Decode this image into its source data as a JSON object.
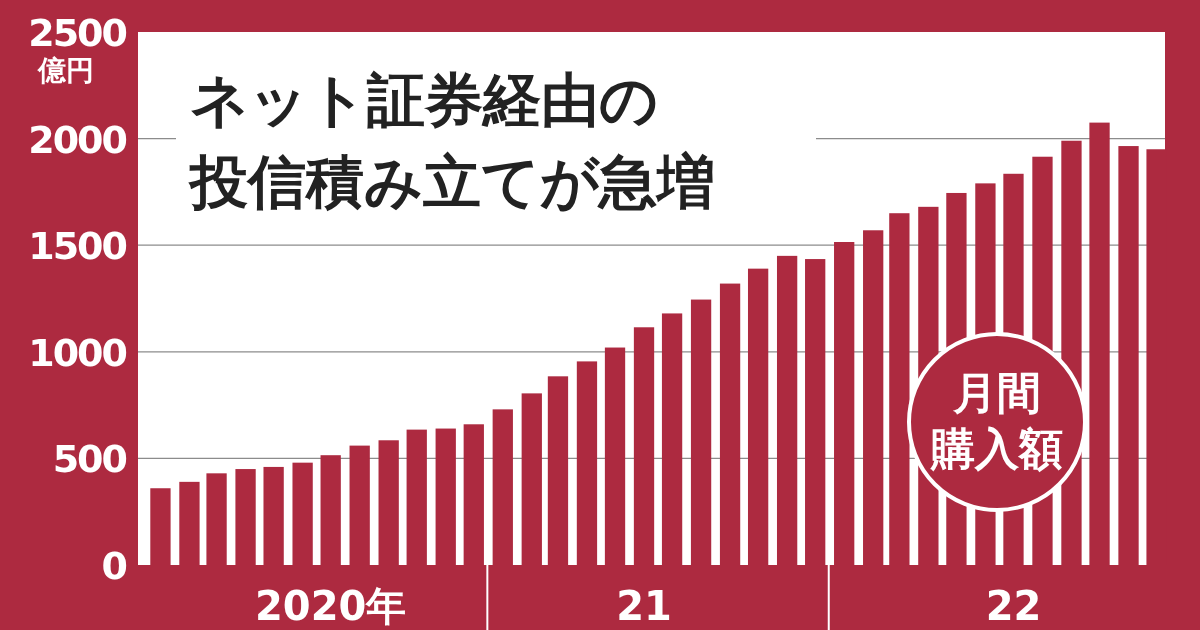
{
  "chart_data": {
    "type": "bar",
    "title": "ネット証券経由の投信積み立てが急増",
    "ylabel": "億円",
    "annotations": [
      "月間購入額"
    ],
    "x": [
      "2020-01",
      "2020-02",
      "2020-03",
      "2020-04",
      "2020-05",
      "2020-06",
      "2020-07",
      "2020-08",
      "2020-09",
      "2020-10",
      "2020-11",
      "2020-12",
      "2021-01",
      "2021-02",
      "2021-03",
      "2021-04",
      "2021-05",
      "2021-06",
      "2021-07",
      "2021-08",
      "2021-09",
      "2021-10",
      "2021-11",
      "2021-12",
      "2022-01",
      "2022-02",
      "2022-03",
      "2022-04",
      "2022-05",
      "2022-06",
      "2022-07",
      "2022-08",
      "2022-09",
      "2022-10",
      "2022-11",
      "2022-12"
    ],
    "values": [
      360,
      390,
      430,
      450,
      460,
      480,
      515,
      560,
      585,
      635,
      640,
      660,
      730,
      805,
      885,
      955,
      1020,
      1115,
      1180,
      1245,
      1320,
      1390,
      1450,
      1435,
      1515,
      1570,
      1650,
      1680,
      1745,
      1790,
      1835,
      1915,
      1990,
      2075,
      1965,
      1950
    ],
    "color": "#ad2a40",
    "xlim": [
      "2019-12-08",
      "2022-12-10"
    ],
    "ylim": [
      0,
      2500
    ],
    "yticks": [
      0,
      500,
      1000,
      1500,
      2000,
      2500
    ],
    "xticks": [
      {
        "value": "2020-07",
        "label": "2020年"
      },
      {
        "value": "2021-06",
        "label": "21"
      },
      {
        "value": "2022-07",
        "label": "22"
      }
    ],
    "grid": "y"
  }
}
